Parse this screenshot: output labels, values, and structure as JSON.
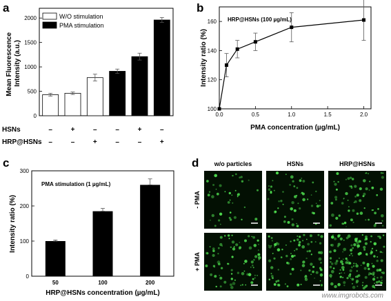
{
  "panels": {
    "a": "a",
    "b": "b",
    "c": "c",
    "d": "d"
  },
  "chart_data": [
    {
      "id": "a",
      "type": "bar",
      "ylabel": "Mean Fluorescence Intensity (a.u.)",
      "ylim": [
        0,
        2200
      ],
      "yticks": [
        0,
        500,
        1000,
        1500,
        2000
      ],
      "legend": [
        {
          "name": "W/O stimulation",
          "color": "#ffffff"
        },
        {
          "name": "PMA stimulation",
          "color": "#000000"
        }
      ],
      "legend_position": "top-left",
      "condition_rows": [
        {
          "label": "HSNs",
          "marks": [
            "–",
            "+",
            "–",
            "–",
            "+",
            "–"
          ]
        },
        {
          "label": "HRP@HSNs",
          "marks": [
            "–",
            "–",
            "+",
            "–",
            "–",
            "+"
          ]
        }
      ],
      "values": [
        430,
        460,
        780,
        910,
        1210,
        1960
      ],
      "errors": [
        30,
        25,
        70,
        45,
        70,
        50
      ],
      "fills": [
        "#ffffff",
        "#ffffff",
        "#ffffff",
        "#000000",
        "#000000",
        "#000000"
      ]
    },
    {
      "id": "b",
      "type": "line",
      "annotation": "HRP@HSNs (100 µg/mL)",
      "xlabel": "PMA concentration (µg/mL)",
      "ylabel": "Intensity ratio (%)",
      "xlim": [
        0,
        2.1
      ],
      "ylim": [
        100,
        170
      ],
      "xticks": [
        "0.0",
        "0.5",
        "1.0",
        "1.5",
        "2.0"
      ],
      "yticks": [
        100,
        120,
        140,
        160
      ],
      "x": [
        0,
        0.1,
        0.25,
        0.5,
        1.0,
        2.0
      ],
      "y": [
        100,
        130,
        141,
        146,
        156,
        161
      ],
      "errors": [
        0,
        8,
        6,
        6,
        10,
        14
      ]
    },
    {
      "id": "c",
      "type": "bar",
      "annotation": "PMA stimulation (1 µg/mL)",
      "xlabel": "HRP@HSNs concentration (µg/mL)",
      "ylabel": "Intensity ratio (%)",
      "ylim": [
        0,
        300
      ],
      "yticks": [
        0,
        100,
        200,
        300
      ],
      "categories": [
        "50",
        "100",
        "200"
      ],
      "values": [
        100,
        185,
        260
      ],
      "errors": [
        3,
        8,
        17
      ]
    }
  ],
  "micrographs": {
    "columns": [
      "w/o particles",
      "HSNs",
      "HRP@HSNs"
    ],
    "rows": [
      "- PMA",
      "+ PMA"
    ],
    "cell_density": [
      [
        40,
        55,
        70
      ],
      [
        80,
        95,
        160
      ]
    ]
  },
  "watermark": "www.imgrobots.com"
}
